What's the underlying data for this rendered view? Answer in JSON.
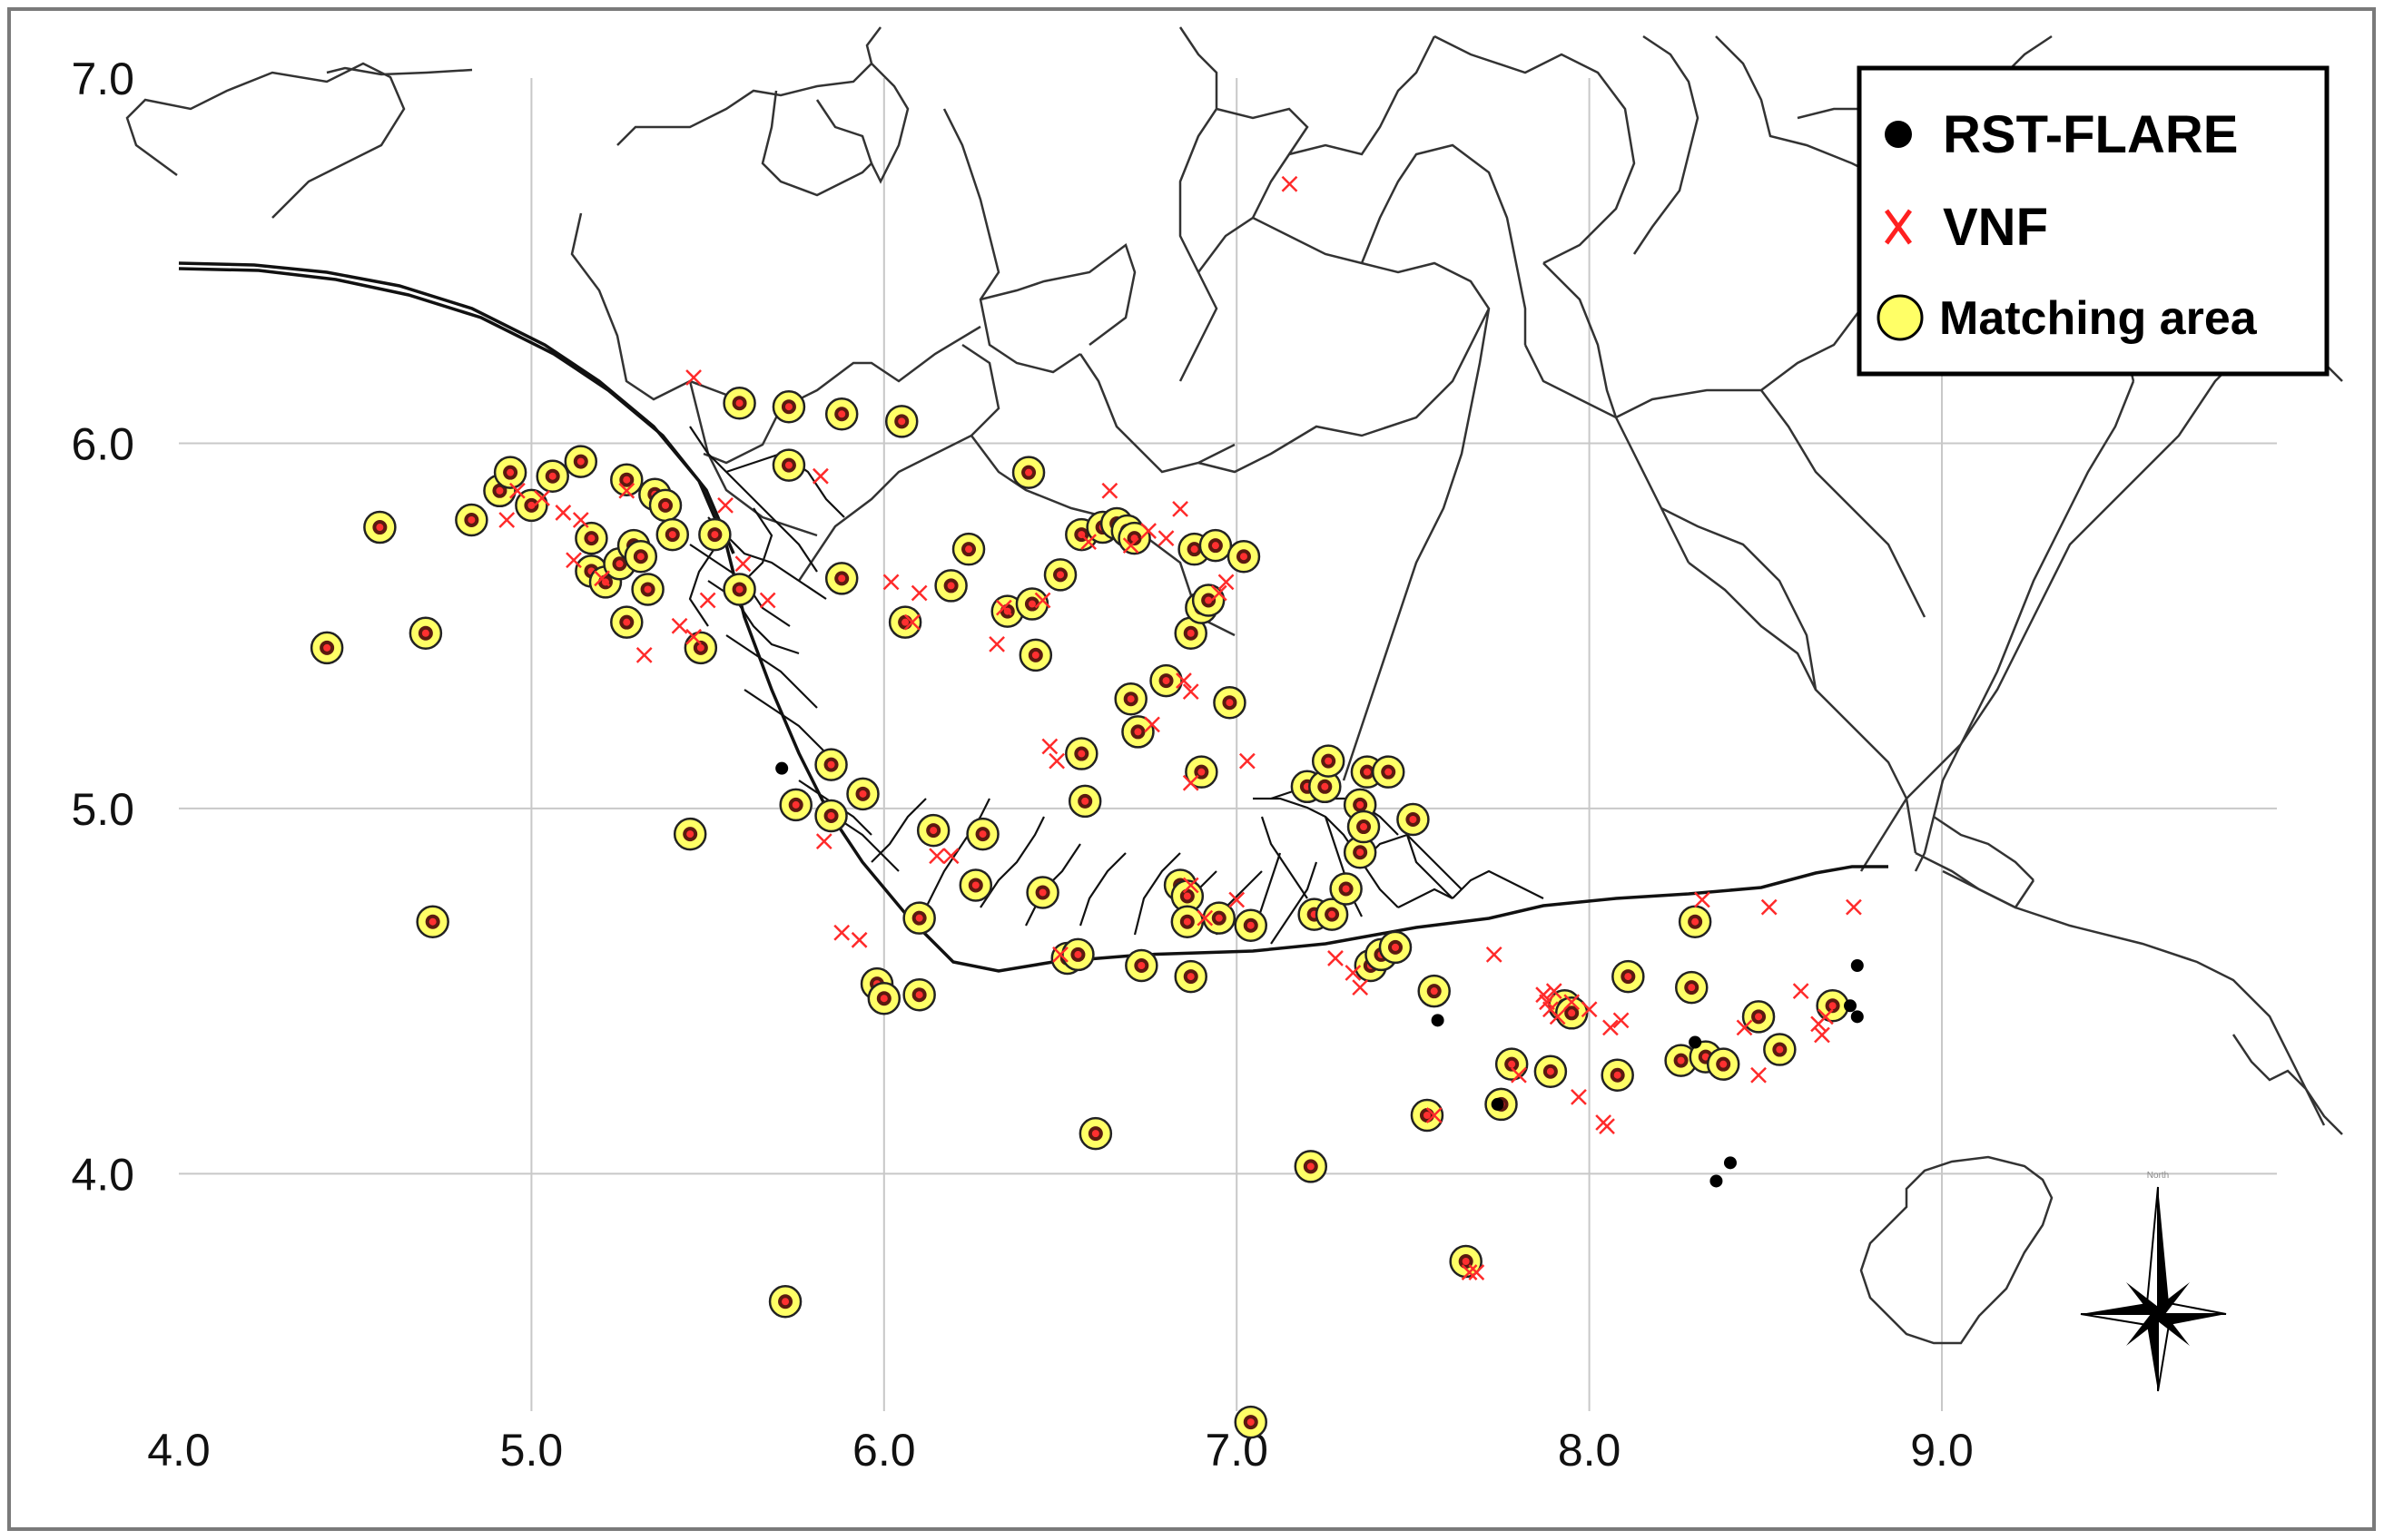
{
  "chart_data": {
    "type": "scatter",
    "title": "",
    "xlabel": "",
    "ylabel": "",
    "xlim": [
      4.0,
      9.95
    ],
    "ylim": [
      3.35,
      7.0
    ],
    "x_ticks": [
      "4.0",
      "5.0",
      "6.0",
      "7.0",
      "8.0",
      "9.0"
    ],
    "y_ticks": [
      "7.0",
      "6.0",
      "5.0",
      "4.0"
    ],
    "grid": true,
    "legend_position": "top-right",
    "legend": [
      {
        "label": "RST-FLARE",
        "marker": "filled-black-circle",
        "color": "#000000"
      },
      {
        "label": "VNF",
        "marker": "red-x",
        "color": "#ff2020"
      },
      {
        "label": "Matching area",
        "marker": "yellow-circle",
        "color": "#ffff66"
      }
    ],
    "series": [
      {
        "name": "Matching area",
        "points": [
          [
            4.42,
            5.44
          ],
          [
            4.57,
            5.77
          ],
          [
            4.7,
            5.48
          ],
          [
            4.72,
            4.69
          ],
          [
            4.83,
            5.79
          ],
          [
            4.91,
            5.87
          ],
          [
            4.94,
            5.92
          ],
          [
            5.0,
            5.83
          ],
          [
            5.06,
            5.91
          ],
          [
            5.14,
            5.95
          ],
          [
            5.17,
            5.65
          ],
          [
            5.17,
            5.74
          ],
          [
            5.21,
            5.62
          ],
          [
            5.25,
            5.67
          ],
          [
            5.27,
            5.9
          ],
          [
            5.27,
            5.51
          ],
          [
            5.29,
            5.72
          ],
          [
            5.31,
            5.69
          ],
          [
            5.33,
            5.6
          ],
          [
            5.35,
            5.86
          ],
          [
            5.38,
            5.83
          ],
          [
            5.4,
            5.75
          ],
          [
            5.45,
            4.93
          ],
          [
            5.48,
            5.44
          ],
          [
            5.52,
            5.75
          ],
          [
            5.59,
            6.11
          ],
          [
            5.59,
            5.6
          ],
          [
            5.73,
            6.1
          ],
          [
            5.73,
            5.94
          ],
          [
            5.72,
            3.65
          ],
          [
            5.75,
            5.01
          ],
          [
            5.85,
            5.12
          ],
          [
            5.85,
            4.98
          ],
          [
            5.88,
            6.08
          ],
          [
            5.88,
            5.63
          ],
          [
            5.94,
            5.04
          ],
          [
            5.98,
            4.52
          ],
          [
            6.0,
            4.48
          ],
          [
            6.05,
            6.06
          ],
          [
            6.06,
            5.51
          ],
          [
            6.1,
            4.49
          ],
          [
            6.1,
            4.7
          ],
          [
            6.14,
            4.94
          ],
          [
            6.19,
            5.61
          ],
          [
            6.24,
            5.71
          ],
          [
            6.26,
            4.79
          ],
          [
            6.28,
            4.93
          ],
          [
            6.35,
            5.54
          ],
          [
            6.42,
            5.56
          ],
          [
            6.41,
            5.92
          ],
          [
            6.43,
            5.42
          ],
          [
            6.45,
            4.77
          ],
          [
            6.5,
            5.64
          ],
          [
            6.52,
            4.59
          ],
          [
            6.55,
            4.6
          ],
          [
            6.56,
            5.75
          ],
          [
            6.56,
            5.15
          ],
          [
            6.57,
            5.02
          ],
          [
            6.6,
            4.11
          ],
          [
            6.62,
            5.77
          ],
          [
            6.66,
            5.78
          ],
          [
            6.69,
            5.76
          ],
          [
            6.7,
            5.3
          ],
          [
            6.71,
            5.74
          ],
          [
            6.72,
            5.21
          ],
          [
            6.73,
            4.57
          ],
          [
            6.8,
            5.35
          ],
          [
            6.84,
            4.79
          ],
          [
            6.86,
            4.76
          ],
          [
            6.86,
            4.69
          ],
          [
            6.87,
            4.54
          ],
          [
            6.87,
            5.48
          ],
          [
            6.88,
            5.71
          ],
          [
            6.9,
            5.55
          ],
          [
            6.9,
            5.1
          ],
          [
            6.92,
            5.57
          ],
          [
            6.94,
            5.72
          ],
          [
            6.95,
            4.7
          ],
          [
            6.98,
            5.29
          ],
          [
            7.02,
            5.69
          ],
          [
            7.04,
            3.32
          ],
          [
            7.04,
            4.68
          ],
          [
            7.2,
            5.06
          ],
          [
            7.21,
            4.02
          ],
          [
            7.22,
            4.71
          ],
          [
            7.25,
            5.06
          ],
          [
            7.27,
            4.71
          ],
          [
            7.26,
            5.13
          ],
          [
            7.31,
            4.78
          ],
          [
            7.35,
            4.88
          ],
          [
            7.35,
            5.01
          ],
          [
            7.36,
            4.95
          ],
          [
            7.37,
            5.1
          ],
          [
            7.38,
            4.57
          ],
          [
            7.41,
            4.6
          ],
          [
            7.43,
            5.1
          ],
          [
            7.45,
            4.62
          ],
          [
            7.5,
            4.97
          ],
          [
            7.54,
            4.16
          ],
          [
            7.56,
            4.5
          ],
          [
            7.65,
            3.76
          ],
          [
            7.75,
            4.19
          ],
          [
            7.78,
            4.3
          ],
          [
            7.89,
            4.28
          ],
          [
            7.93,
            4.46
          ],
          [
            7.95,
            4.44
          ],
          [
            8.08,
            4.27
          ],
          [
            8.11,
            4.54
          ],
          [
            8.26,
            4.31
          ],
          [
            8.29,
            4.51
          ],
          [
            8.3,
            4.69
          ],
          [
            8.33,
            4.32
          ],
          [
            8.38,
            4.3
          ],
          [
            8.48,
            4.43
          ],
          [
            8.54,
            4.34
          ],
          [
            8.69,
            4.46
          ]
        ]
      },
      {
        "name": "VNF",
        "points": [
          [
            4.93,
            5.79
          ],
          [
            4.96,
            5.87
          ],
          [
            5.03,
            5.85
          ],
          [
            5.09,
            5.81
          ],
          [
            5.12,
            5.68
          ],
          [
            5.14,
            5.79
          ],
          [
            5.2,
            5.63
          ],
          [
            5.27,
            5.87
          ],
          [
            5.32,
            5.42
          ],
          [
            5.42,
            5.5
          ],
          [
            5.46,
            6.18
          ],
          [
            5.46,
            5.47
          ],
          [
            5.5,
            5.57
          ],
          [
            5.55,
            5.83
          ],
          [
            5.6,
            5.67
          ],
          [
            5.67,
            5.57
          ],
          [
            5.82,
            5.91
          ],
          [
            5.83,
            4.91
          ],
          [
            5.88,
            4.66
          ],
          [
            5.93,
            4.64
          ],
          [
            6.02,
            5.62
          ],
          [
            6.08,
            5.51
          ],
          [
            6.1,
            5.59
          ],
          [
            6.15,
            4.87
          ],
          [
            6.19,
            4.87
          ],
          [
            6.34,
            5.55
          ],
          [
            6.32,
            5.45
          ],
          [
            6.45,
            5.57
          ],
          [
            6.47,
            5.17
          ],
          [
            6.49,
            5.13
          ],
          [
            6.5,
            4.6
          ],
          [
            6.58,
            5.73
          ],
          [
            6.64,
            5.87
          ],
          [
            6.7,
            5.72
          ],
          [
            6.75,
            5.76
          ],
          [
            6.76,
            5.23
          ],
          [
            6.8,
            5.74
          ],
          [
            6.84,
            5.82
          ],
          [
            6.85,
            5.35
          ],
          [
            6.87,
            5.07
          ],
          [
            6.87,
            4.79
          ],
          [
            6.87,
            5.32
          ],
          [
            6.91,
            4.7
          ],
          [
            6.95,
            5.59
          ],
          [
            6.97,
            5.62
          ],
          [
            7.0,
            4.75
          ],
          [
            7.03,
            5.13
          ],
          [
            7.15,
            6.71
          ],
          [
            7.28,
            4.59
          ],
          [
            7.33,
            4.55
          ],
          [
            7.35,
            4.51
          ],
          [
            7.56,
            4.16
          ],
          [
            7.66,
            3.73
          ],
          [
            7.68,
            3.73
          ],
          [
            7.73,
            4.6
          ],
          [
            7.8,
            4.27
          ],
          [
            7.87,
            4.49
          ],
          [
            7.88,
            4.47
          ],
          [
            7.89,
            4.45
          ],
          [
            7.91,
            4.43
          ],
          [
            7.9,
            4.5
          ],
          [
            7.95,
            4.47
          ],
          [
            7.97,
            4.21
          ],
          [
            8.0,
            4.45
          ],
          [
            8.04,
            4.14
          ],
          [
            8.05,
            4.13
          ],
          [
            8.06,
            4.4
          ],
          [
            8.09,
            4.42
          ],
          [
            8.32,
            4.75
          ],
          [
            8.44,
            4.4
          ],
          [
            8.48,
            4.27
          ],
          [
            8.51,
            4.73
          ],
          [
            8.6,
            4.5
          ],
          [
            8.65,
            4.41
          ],
          [
            8.66,
            4.38
          ],
          [
            8.67,
            4.43
          ],
          [
            8.75,
            4.73
          ]
        ]
      },
      {
        "name": "RST-FLARE",
        "points": [
          [
            5.71,
            5.11
          ],
          [
            7.57,
            4.42
          ],
          [
            7.74,
            4.19
          ],
          [
            8.3,
            4.36
          ],
          [
            8.36,
            3.98
          ],
          [
            8.4,
            4.03
          ],
          [
            8.74,
            4.46
          ],
          [
            8.76,
            4.43
          ],
          [
            8.76,
            4.57
          ]
        ]
      }
    ]
  },
  "map_features": {
    "north_arrow_icon": "compass-rose-icon",
    "compass_label": "North"
  }
}
